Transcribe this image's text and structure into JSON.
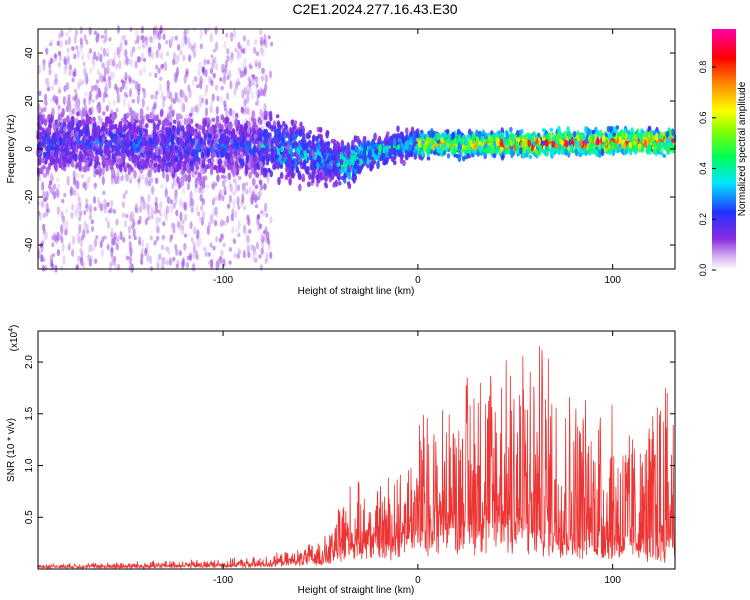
{
  "title": "C2E1.2024.277.16.43.E30",
  "chart_data": [
    {
      "type": "heatmap",
      "xlabel": "Height of straight line (km)",
      "ylabel": "Frequency (Hz)",
      "xlim": [
        -195,
        132
      ],
      "ylim": [
        -50,
        50
      ],
      "xticks": [
        -100,
        0,
        100
      ],
      "yticks": [
        -40,
        -20,
        0,
        20,
        40
      ],
      "colorbar": {
        "label": "Normalized spectral amplitude",
        "range": [
          0,
          0.95
        ],
        "ticks": [
          0.0,
          0.2,
          0.4,
          0.6,
          0.8
        ],
        "tick_labels": [
          "0.0",
          "0.2",
          "0.4",
          "0.6",
          "0.8"
        ],
        "colormap": "white-violet-blue-cyan-green-yellow-red-magenta"
      },
      "ridge": [
        {
          "x": -190,
          "freq": 3,
          "width": 14
        },
        {
          "x": -150,
          "freq": 2,
          "width": 14
        },
        {
          "x": -120,
          "freq": 0,
          "width": 14
        },
        {
          "x": -90,
          "freq": 1,
          "width": 13
        },
        {
          "x": -70,
          "freq": 0,
          "width": 13
        },
        {
          "x": -50,
          "freq": -3,
          "width": 11
        },
        {
          "x": -38,
          "freq": -7,
          "width": 9
        },
        {
          "x": -25,
          "freq": -2,
          "width": 7
        },
        {
          "x": -10,
          "freq": 1,
          "width": 6
        },
        {
          "x": 0,
          "freq": 2,
          "width": 5
        },
        {
          "x": 30,
          "freq": 2,
          "width": 5
        },
        {
          "x": 60,
          "freq": 2,
          "width": 5
        },
        {
          "x": 100,
          "freq": 3,
          "width": 5
        },
        {
          "x": 132,
          "freq": 3,
          "width": 5
        }
      ],
      "peak_amplitude_segments": [
        {
          "x": [
            -195,
            -80
          ],
          "amplitude": 0.25
        },
        {
          "x": [
            -80,
            -40
          ],
          "amplitude": 0.35
        },
        {
          "x": [
            -40,
            0
          ],
          "amplitude": 0.45
        },
        {
          "x": [
            0,
            40
          ],
          "amplitude": 0.7
        },
        {
          "x": [
            40,
            132
          ],
          "amplitude": 0.85
        }
      ],
      "scatter_noise": {
        "x": [
          -195,
          -75
        ],
        "freq_range": [
          -50,
          50
        ],
        "amplitude": 0.1
      }
    },
    {
      "type": "line",
      "xlabel": "Height of straight line (km)",
      "ylabel": "SNR (10 * v/v)",
      "scale_label": "(x10",
      "scale_exponent": "4",
      "scale_close": ")",
      "xlim": [
        -195,
        132
      ],
      "ylim": [
        0,
        2.3
      ],
      "xticks": [
        -100,
        0,
        100
      ],
      "yticks": [
        0.5,
        1.0,
        1.5,
        2.0
      ],
      "ytick_labels": [
        "0.5",
        "1.0",
        "1.5",
        "2.0"
      ],
      "color": "#ee3333",
      "envelope": [
        {
          "x": -195,
          "base": 0.02,
          "peak": 0.05
        },
        {
          "x": -150,
          "base": 0.02,
          "peak": 0.07
        },
        {
          "x": -100,
          "base": 0.03,
          "peak": 0.1
        },
        {
          "x": -80,
          "base": 0.04,
          "peak": 0.12
        },
        {
          "x": -60,
          "base": 0.08,
          "peak": 0.2
        },
        {
          "x": -45,
          "base": 0.12,
          "peak": 0.35
        },
        {
          "x": -38,
          "base": 0.2,
          "peak": 0.85
        },
        {
          "x": -20,
          "base": 0.25,
          "peak": 0.8
        },
        {
          "x": -5,
          "base": 0.3,
          "peak": 1.2
        },
        {
          "x": 0,
          "base": 0.35,
          "peak": 1.55
        },
        {
          "x": 15,
          "base": 0.4,
          "peak": 1.6
        },
        {
          "x": 30,
          "base": 0.4,
          "peak": 2.15
        },
        {
          "x": 50,
          "base": 0.35,
          "peak": 2.3
        },
        {
          "x": 65,
          "base": 0.3,
          "peak": 2.2
        },
        {
          "x": 80,
          "base": 0.25,
          "peak": 1.8
        },
        {
          "x": 100,
          "base": 0.2,
          "peak": 1.65
        },
        {
          "x": 115,
          "base": 0.2,
          "peak": 1.3
        },
        {
          "x": 125,
          "base": 0.15,
          "peak": 1.85
        },
        {
          "x": 132,
          "base": 0.3,
          "peak": 1.9
        }
      ]
    }
  ]
}
